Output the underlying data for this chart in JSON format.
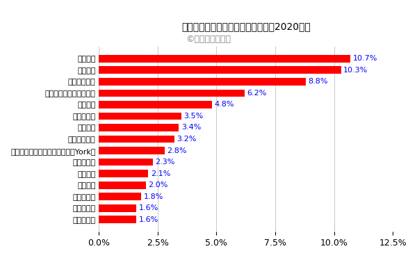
{
  "title": "空調・エアコン業界の世界シェア（2020年）",
  "subtitle": "©業界再編の動向",
  "categories": [
    "ダイキン",
    "美的集団",
    "珠海格力電器",
    "トレイン・テクノロジー",
    "キャリア",
    "ダンフォス",
    "三菱電機",
    "パナソニック",
    "ジョンソン・コントロールズ（York）",
    "ハイアール",
    "ボッシュ",
    "エマソン",
    "ハイゼンス",
    "ヴァイヨン",
    "レノックス"
  ],
  "values": [
    10.7,
    10.3,
    8.8,
    6.2,
    4.8,
    3.5,
    3.4,
    3.2,
    2.8,
    2.3,
    2.1,
    2.0,
    1.8,
    1.6,
    1.6
  ],
  "bar_color": "#FF0000",
  "label_color": "#0000FF",
  "title_color": "#000000",
  "subtitle_color": "#888888",
  "background_color": "#FFFFFF",
  "xlim": [
    0,
    12.5
  ],
  "xticks": [
    0.0,
    2.5,
    5.0,
    7.5,
    10.0,
    12.5
  ],
  "title_fontsize": 15,
  "subtitle_fontsize": 9,
  "label_fontsize": 8,
  "tick_fontsize": 9,
  "value_fontsize": 8
}
